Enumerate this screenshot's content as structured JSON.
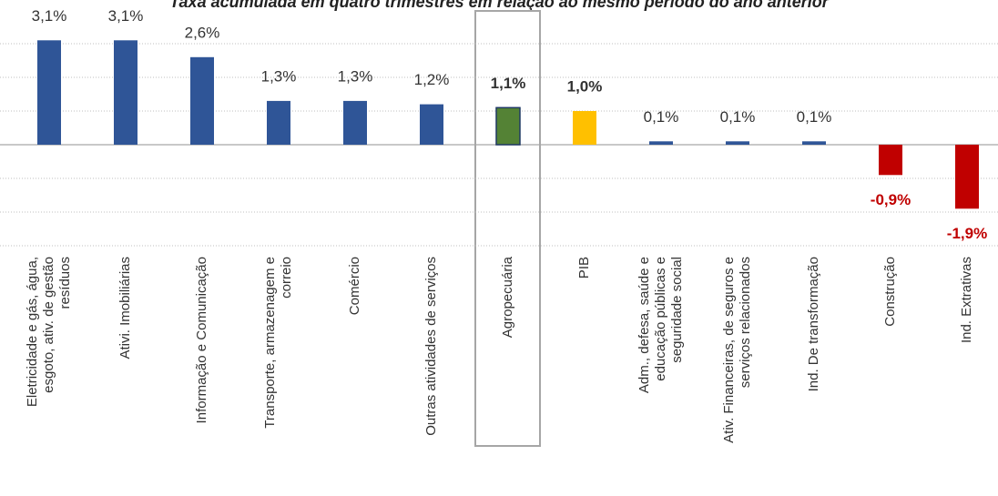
{
  "chart_data": {
    "type": "bar",
    "title": "Taxa acumulada em quatro trimestres em relação ao mesmo período do ano anterior",
    "categories": [
      [
        "Eletricidade e gás, água,",
        "esgoto, ativ. de gestão",
        "resíduos"
      ],
      [
        "Ativi. Imobiliárias"
      ],
      [
        "Informação e Comunicação"
      ],
      [
        "Transporte, armazenagem e",
        "correio"
      ],
      [
        "Comércio"
      ],
      [
        "Outras atividades de serviços"
      ],
      [
        "Agropecuária"
      ],
      [
        "PIB"
      ],
      [
        "Adm., defesa, saúde e",
        "educação públicas e",
        "seguridade social"
      ],
      [
        "Ativ. Financeiras, de seguros e",
        "serviços relacionados"
      ],
      [
        "Ind. De transformação"
      ],
      [
        "Construção"
      ],
      [
        "Ind. Extrativas"
      ]
    ],
    "values": [
      3.1,
      3.1,
      2.6,
      1.3,
      1.3,
      1.2,
      1.1,
      1.0,
      0.1,
      0.1,
      0.1,
      -0.9,
      -1.9
    ],
    "value_labels": [
      "3,1%",
      "3,1%",
      "2,6%",
      "1,3%",
      "1,3%",
      "1,2%",
      "1,1%",
      "1,0%",
      "0,1%",
      "0,1%",
      "0,1%",
      "-0,9%",
      "-1,9%"
    ],
    "color": "#2f5597",
    "colors": [
      "#2f5597",
      "#2f5597",
      "#2f5597",
      "#2f5597",
      "#2f5597",
      "#2f5597",
      "#548235",
      "#ffc000",
      "#2f5597",
      "#2f5597",
      "#2f5597",
      "#c00000",
      "#c00000"
    ],
    "ylim": [
      -3,
      3
    ],
    "yticks": [
      -3,
      -2,
      -1,
      0,
      1,
      2,
      3
    ],
    "grid": true
  }
}
